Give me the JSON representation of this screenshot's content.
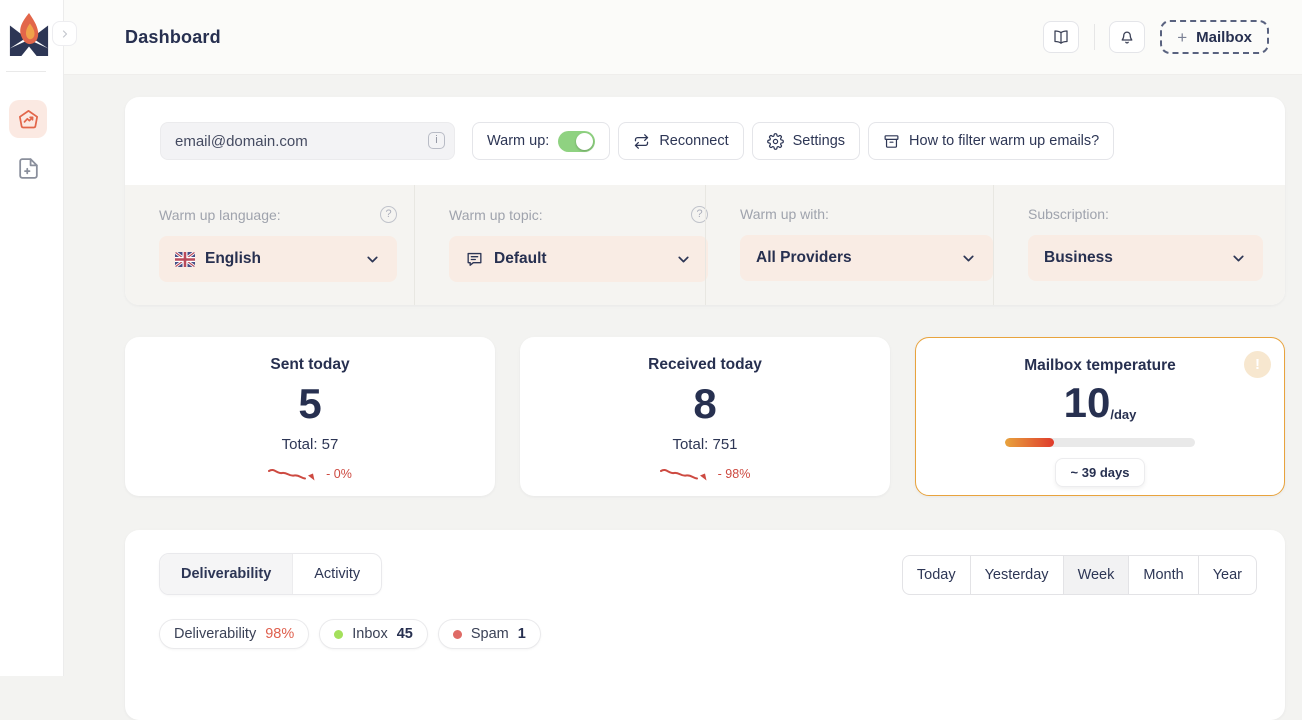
{
  "colors": {
    "accent_orange": "#e2664a",
    "navy_text": "#273050",
    "dropdown_peach": "#f9ece4",
    "toggle_green": "#8fd281",
    "trend_red": "#cd4a41",
    "temperature_border_gold": "#e8a33d",
    "deliverability_value_red": "#df604e",
    "inbox_dot_green": "#a4e05c",
    "spam_dot_red": "#df6b66"
  },
  "sidebar": {
    "items": [
      {
        "icon": "home-chart-icon",
        "active": true
      },
      {
        "icon": "file-plus-icon",
        "active": false
      }
    ]
  },
  "header": {
    "title": "Dashboard",
    "add_mailbox_plus": "+",
    "add_mailbox_label": "Mailbox"
  },
  "toolbar": {
    "email_value": "email@domain.com",
    "warmup_label": "Warm up:",
    "warmup_state": "on",
    "reconnect_label": "Reconnect",
    "settings_label": "Settings",
    "filter_help_label": "How to filter warm up emails?"
  },
  "settings_row": [
    {
      "label": "Warm up language:",
      "value": "English",
      "icon": "uk-flag-icon",
      "has_help": true
    },
    {
      "label": "Warm up topic:",
      "value": "Default",
      "icon": "chat-icon",
      "has_help": true
    },
    {
      "label": "Warm up with:",
      "value": "All Providers",
      "icon": "",
      "has_help": false
    },
    {
      "label": "Subscription:",
      "value": "Business",
      "icon": "",
      "has_help": false
    }
  ],
  "stats": [
    {
      "title": "Sent today",
      "value": "5",
      "total": "Total: 57",
      "trend": "- 0%"
    },
    {
      "title": "Received today",
      "value": "8",
      "total": "Total: 751",
      "trend": "- 98%"
    }
  ],
  "temperature": {
    "title": "Mailbox temperature",
    "value": "10",
    "unit": "/day",
    "progress_percent": 26,
    "eta": "~ 39 days",
    "alert": "!"
  },
  "analytics": {
    "tabs": [
      {
        "label": "Deliverability",
        "active": true
      },
      {
        "label": "Activity",
        "active": false
      }
    ],
    "periods": [
      {
        "label": "Today",
        "active": false
      },
      {
        "label": "Yesterday",
        "active": false
      },
      {
        "label": "Week",
        "active": true
      },
      {
        "label": "Month",
        "active": false
      },
      {
        "label": "Year",
        "active": false
      }
    ],
    "badges": [
      {
        "label": "Deliverability",
        "value": "98%"
      },
      {
        "label": "Inbox",
        "value": "45"
      },
      {
        "label": "Spam",
        "value": "1"
      }
    ]
  }
}
